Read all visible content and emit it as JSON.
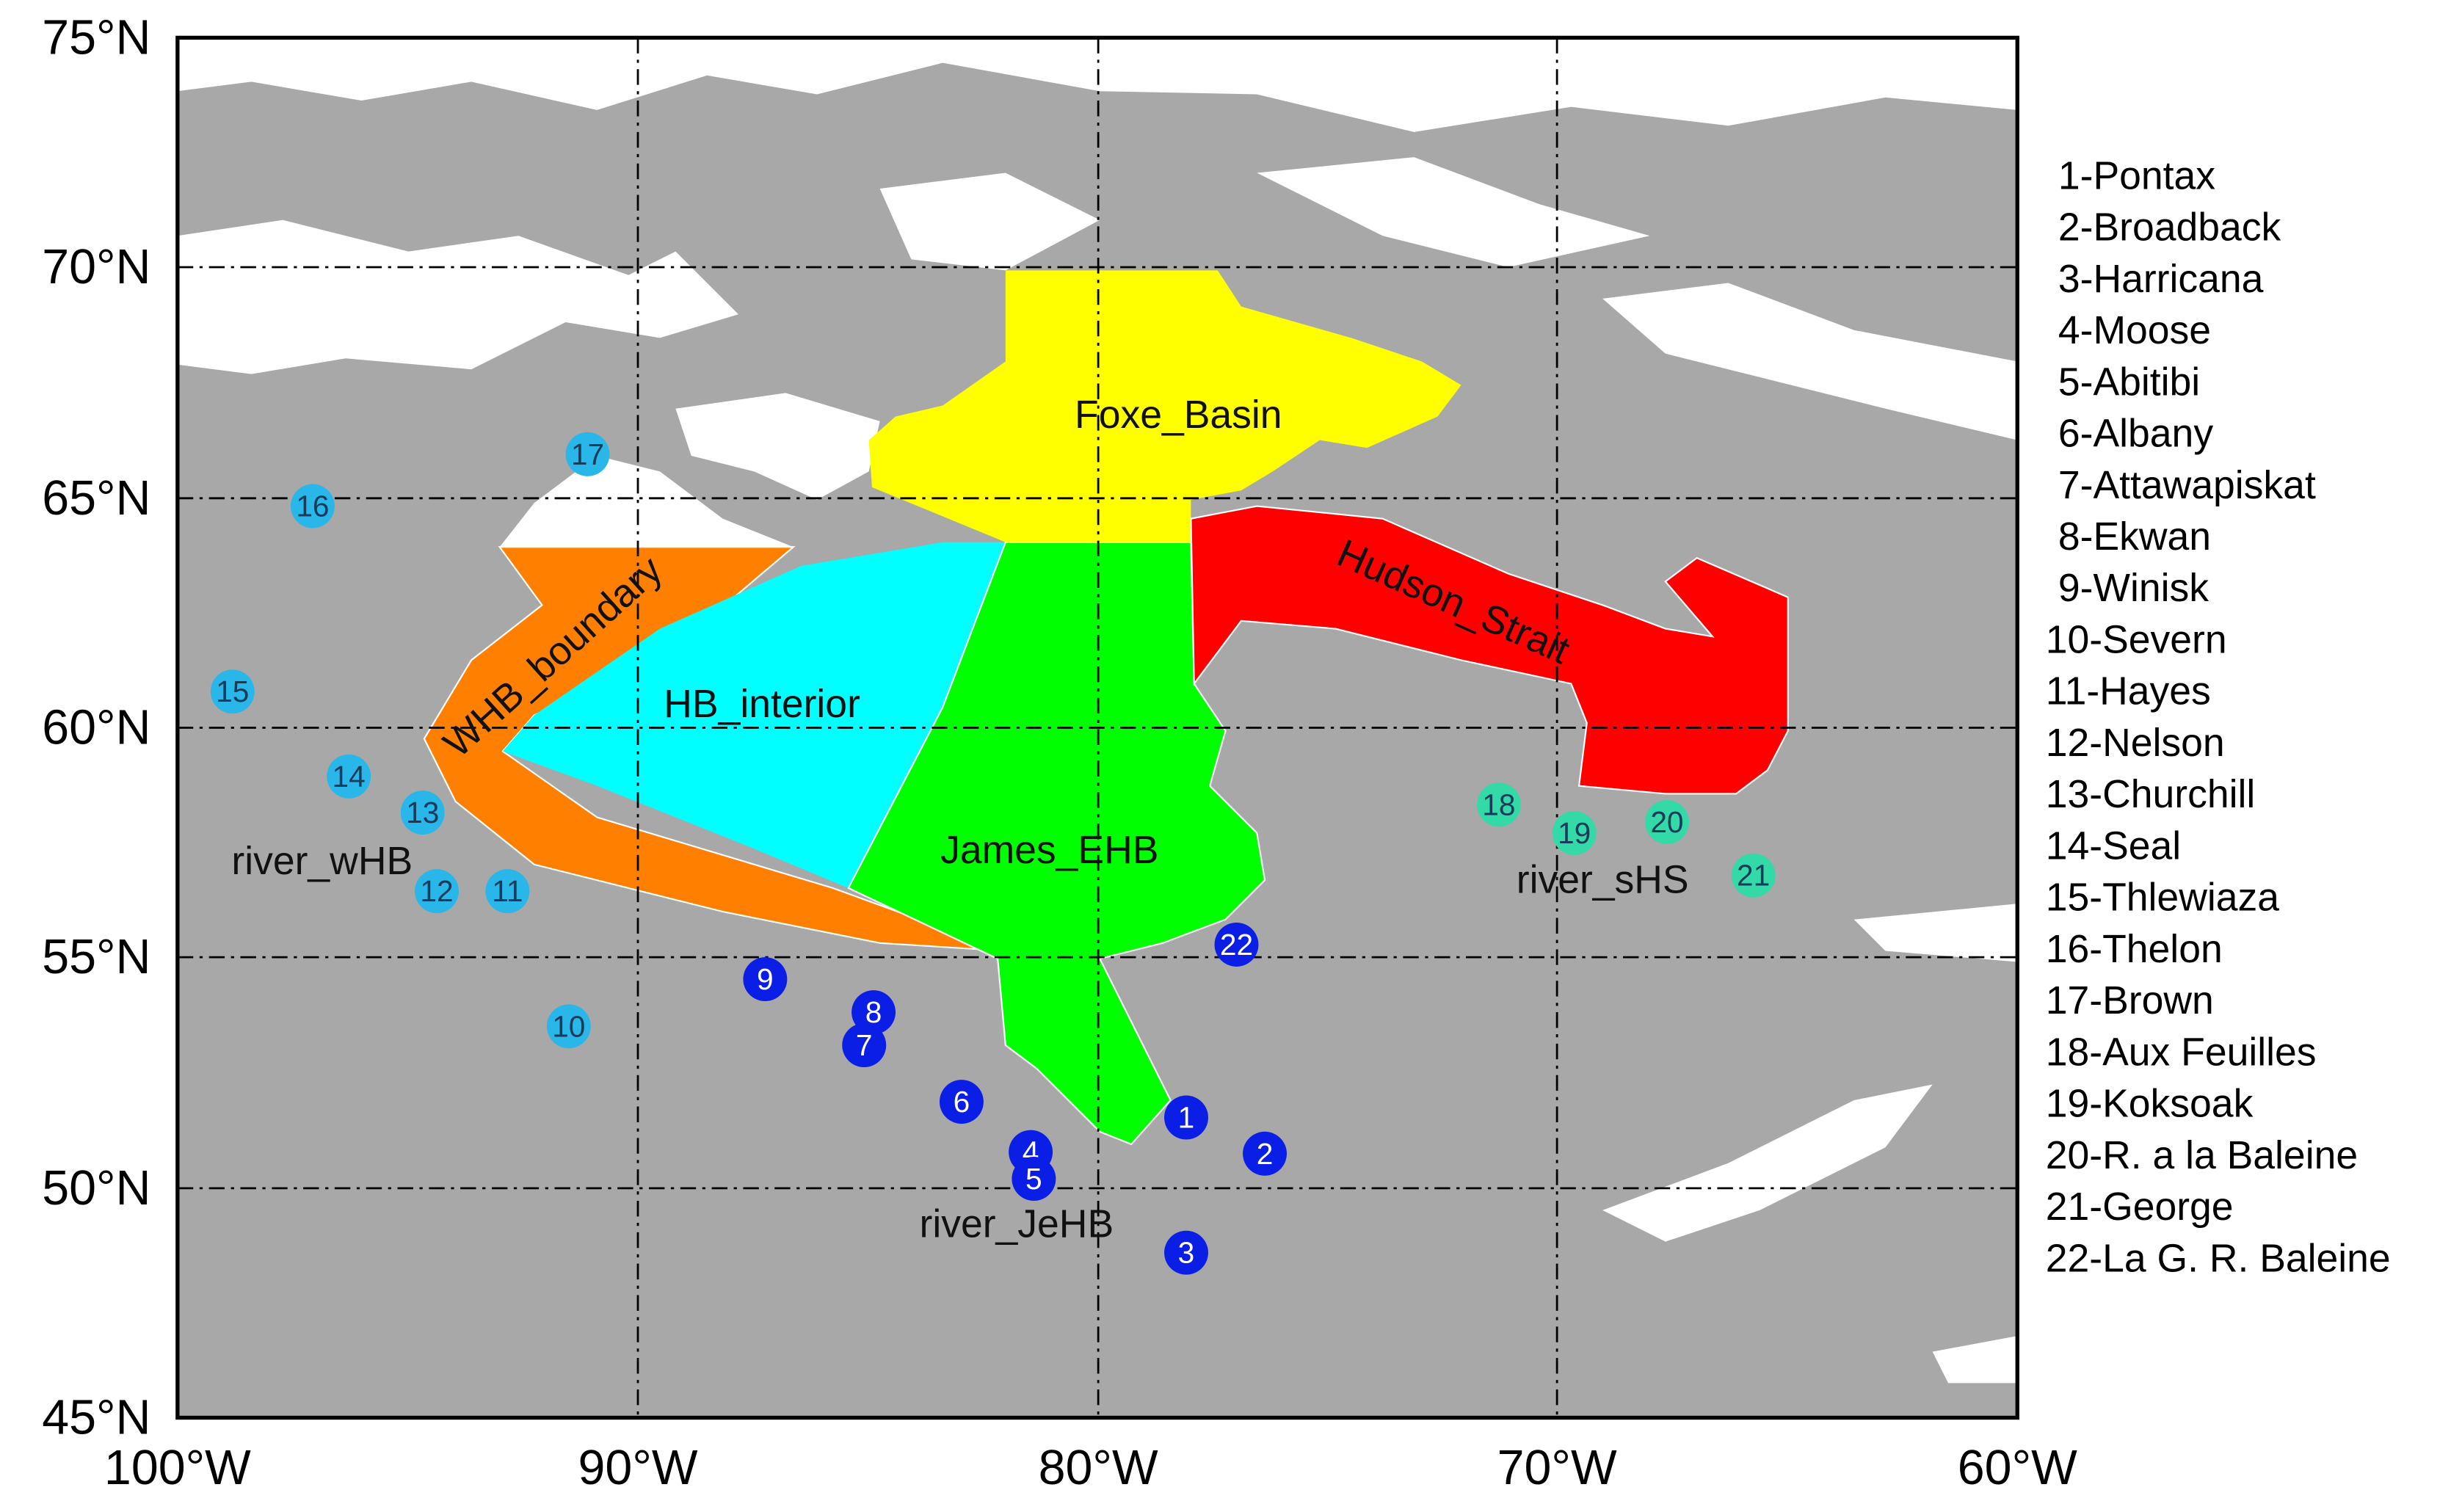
{
  "axes": {
    "lat_labels": [
      "75°N",
      "70°N",
      "65°N",
      "60°N",
      "55°N",
      "50°N",
      "45°N"
    ],
    "lon_labels": [
      "100°W",
      "90°W",
      "80°W",
      "70°W",
      "60°W"
    ]
  },
  "regions": [
    {
      "label": "Foxe_Basin"
    },
    {
      "label": "Hudson_Strait"
    },
    {
      "label": "WHB_boundary"
    },
    {
      "label": "HB_interior"
    },
    {
      "label": "James_EHB"
    }
  ],
  "river_groups": [
    {
      "label": "river_wHB"
    },
    {
      "label": "river_JeHB"
    },
    {
      "label": "river_sHS"
    }
  ],
  "stations": [
    {
      "number": "1"
    },
    {
      "number": "2"
    },
    {
      "number": "3"
    },
    {
      "number": "4"
    },
    {
      "number": "5"
    },
    {
      "number": "6"
    },
    {
      "number": "7"
    },
    {
      "number": "8"
    },
    {
      "number": "9"
    },
    {
      "number": "10"
    },
    {
      "number": "11"
    },
    {
      "number": "12"
    },
    {
      "number": "13"
    },
    {
      "number": "14"
    },
    {
      "number": "15"
    },
    {
      "number": "16"
    },
    {
      "number": "17"
    },
    {
      "number": "18"
    },
    {
      "number": "19"
    },
    {
      "number": "20"
    },
    {
      "number": "21"
    },
    {
      "number": "22"
    }
  ],
  "legend": [
    "1-Pontax",
    "2-Broadback",
    "3-Harricana",
    "4-Moose",
    "5-Abitibi",
    "6-Albany",
    "7-Attawapiskat",
    "8-Ekwan",
    "9-Winisk",
    "10-Severn",
    "11-Hayes",
    "12-Nelson",
    "13-Churchill",
    "14-Seal",
    "15-Thlewiaza",
    "16-Thelon",
    "17-Brown",
    "18-Aux Feuilles",
    "19-Koksoak",
    "20-R. a la Baleine",
    "21-George",
    "22-La G. R. Baleine"
  ]
}
